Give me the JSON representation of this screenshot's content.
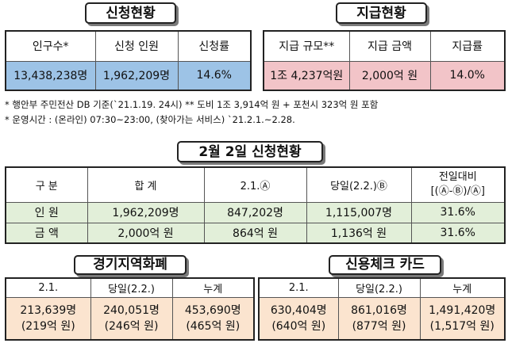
{
  "section1": {
    "title": "신청현황",
    "headers": [
      "인구수*",
      "신청 인원",
      "신청률"
    ],
    "values": [
      "13,438,238명",
      "1,962,209명",
      "14.6%"
    ]
  },
  "section2": {
    "title": "지급현황",
    "headers": [
      "지급 규모**",
      "지급 금액",
      "지급률"
    ],
    "values": [
      "1조 4,237억원",
      "2,000억 원",
      "14.0%"
    ]
  },
  "notes": {
    "line1": "*  행안부 주민전산 DB 기준(`21.1.19. 24시)   ** 도비 1조 3,914억 원 + 포천시 323억 원 포함",
    "line2": "*  운영시간 : (온라인) 07:30~23:00, (찾아가는 서비스) `21.2.1.~2.28."
  },
  "section3": {
    "title": "2월 2일 신청현황",
    "headers": [
      "구  분",
      "합    계",
      "2.1.Ⓐ",
      "당일(2.2.)Ⓑ",
      "전일대비",
      "[(Ⓐ-Ⓑ)/Ⓐ]"
    ],
    "rows": [
      [
        "인  원",
        "1,962,209명",
        "847,202명",
        "1,115,007명",
        "31.6%"
      ],
      [
        "금  액",
        "2,000억 원",
        "864억 원",
        "1,136억 원",
        "31.6%"
      ]
    ]
  },
  "section4": {
    "title": "경기지역화폐",
    "headers": [
      "2.1.",
      "당일(2.2.)",
      "누계"
    ],
    "values_line1": [
      "213,639명",
      "240,051명",
      "453,690명"
    ],
    "values_line2": [
      "(219억 원)",
      "(246억 원)",
      "(465억 원)"
    ]
  },
  "section5": {
    "title": "신용체크 카드",
    "headers": [
      "2.1.",
      "당일(2.2.)",
      "누계"
    ],
    "values_line1": [
      "630,404명",
      "861,016명",
      "1,491,420명"
    ],
    "values_line2": [
      "(640억 원)",
      "(877억 원)",
      "(1,517억 원)"
    ]
  },
  "colors": {
    "blue": "#9dc3e6",
    "pink": "#f2c4c8",
    "green": "#e2efd9",
    "peach": "#fbe4cf"
  }
}
